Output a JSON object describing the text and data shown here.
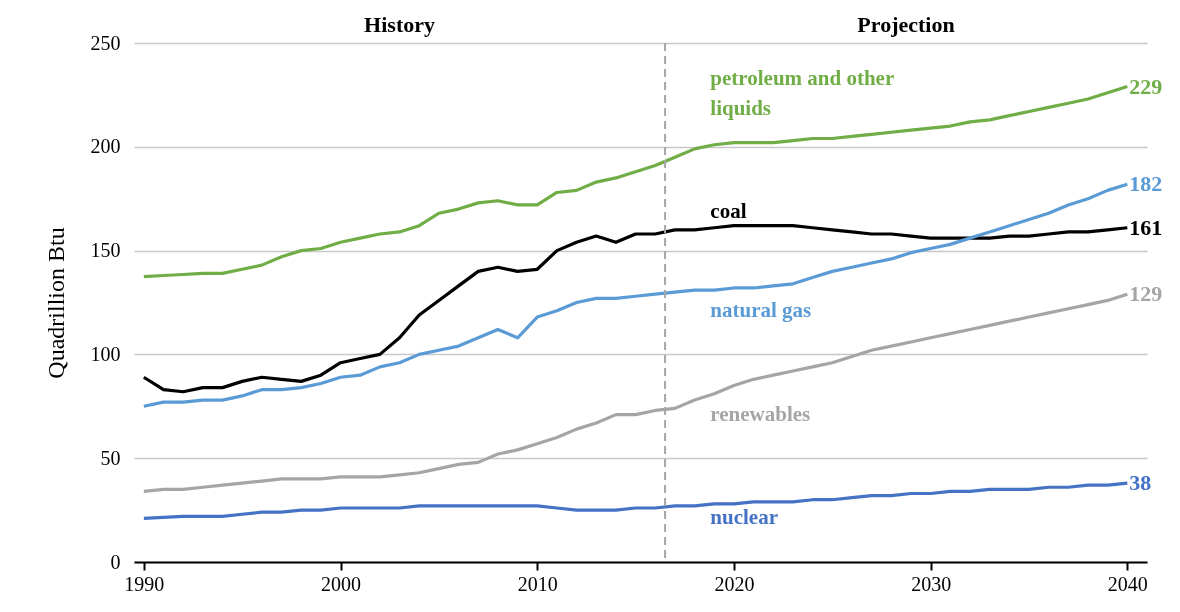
{
  "chart_data": {
    "type": "line",
    "ylabel": "Quadrillion Btu",
    "annotations": [
      "History",
      "Projection"
    ],
    "x": [
      1990,
      1991,
      1992,
      1993,
      1994,
      1995,
      1996,
      1997,
      1998,
      1999,
      2000,
      2001,
      2002,
      2003,
      2004,
      2005,
      2006,
      2007,
      2008,
      2009,
      2010,
      2011,
      2012,
      2013,
      2014,
      2015,
      2016,
      2017,
      2018,
      2019,
      2020,
      2021,
      2022,
      2023,
      2024,
      2025,
      2026,
      2027,
      2028,
      2029,
      2030,
      2031,
      2032,
      2033,
      2034,
      2035,
      2036,
      2037,
      2038,
      2039,
      2040
    ],
    "series": [
      {
        "name": "petroleum and other liquids",
        "color": "#70ad47",
        "values": [
          137.5,
          138,
          138.5,
          139,
          139,
          141,
          143,
          147,
          150,
          151,
          154,
          156,
          158,
          159,
          162,
          168,
          170,
          173,
          174,
          172,
          172,
          178,
          179,
          183,
          185,
          188,
          191,
          195,
          199,
          201,
          202,
          202,
          202,
          203,
          204,
          204,
          205,
          206,
          207,
          208,
          209,
          210,
          212,
          213,
          215,
          217,
          219,
          221,
          223,
          226,
          229
        ],
        "value_labels": [
          null,
          null,
          null,
          null,
          null,
          null,
          null,
          null,
          null,
          null,
          null,
          null,
          null,
          null,
          null,
          null,
          null,
          null,
          null,
          null,
          null,
          null,
          null,
          null,
          null,
          null,
          null,
          null,
          null,
          null,
          null,
          null,
          null,
          null,
          null,
          null,
          null,
          null,
          null,
          null,
          null,
          null,
          null,
          null,
          null,
          null,
          null,
          null,
          null,
          null,
          "229"
        ]
      },
      {
        "name": "coal",
        "color": "#000000",
        "values": [
          89,
          83,
          82,
          84,
          84,
          87,
          89,
          88,
          87,
          90,
          96,
          98,
          100,
          108,
          119,
          126,
          133,
          140,
          142,
          140,
          141,
          150,
          154,
          157,
          154,
          158,
          158,
          160,
          160,
          161,
          162,
          162,
          162,
          162,
          161,
          160,
          159,
          158,
          158,
          157,
          156,
          156,
          156,
          156,
          157,
          157,
          158,
          159,
          159,
          160,
          161
        ],
        "value_labels": [
          null,
          null,
          null,
          null,
          null,
          null,
          null,
          null,
          null,
          null,
          null,
          null,
          null,
          null,
          null,
          null,
          null,
          null,
          null,
          null,
          null,
          null,
          null,
          null,
          null,
          null,
          null,
          null,
          null,
          null,
          null,
          null,
          null,
          null,
          null,
          null,
          null,
          null,
          null,
          null,
          null,
          null,
          null,
          null,
          null,
          null,
          null,
          null,
          null,
          null,
          "161"
        ]
      },
      {
        "name": "natural gas",
        "color": "#5b9bd5",
        "values": [
          75,
          77,
          77,
          78,
          78,
          80,
          83,
          83,
          84,
          86,
          89,
          90,
          94,
          96,
          100,
          102,
          104,
          108,
          112,
          108,
          118,
          121,
          125,
          127,
          127,
          128,
          129,
          130,
          131,
          131,
          132,
          132,
          133,
          134,
          137,
          140,
          142,
          144,
          146,
          149,
          151,
          153,
          156,
          159,
          162,
          165,
          168,
          172,
          175,
          179,
          182
        ],
        "value_labels": [
          null,
          null,
          null,
          null,
          null,
          null,
          null,
          null,
          null,
          null,
          null,
          null,
          null,
          null,
          null,
          null,
          null,
          null,
          null,
          null,
          null,
          null,
          null,
          null,
          null,
          null,
          null,
          null,
          null,
          null,
          null,
          null,
          null,
          null,
          null,
          null,
          null,
          null,
          null,
          null,
          null,
          null,
          null,
          null,
          null,
          null,
          null,
          null,
          null,
          null,
          "182"
        ]
      },
      {
        "name": "renewables",
        "color": "#a5a5a5",
        "values": [
          34,
          35,
          35,
          36,
          37,
          38,
          39,
          40,
          40,
          40,
          41,
          41,
          41,
          42,
          43,
          45,
          47,
          48,
          52,
          54,
          57,
          60,
          64,
          67,
          71,
          71,
          73,
          74,
          78,
          81,
          85,
          88,
          90,
          92,
          94,
          96,
          99,
          102,
          104,
          106,
          108,
          110,
          112,
          114,
          116,
          118,
          120,
          122,
          124,
          126,
          129
        ],
        "value_labels": [
          null,
          null,
          null,
          null,
          null,
          null,
          null,
          null,
          null,
          null,
          null,
          null,
          null,
          null,
          null,
          null,
          null,
          null,
          null,
          null,
          null,
          null,
          null,
          null,
          null,
          null,
          null,
          null,
          null,
          null,
          null,
          null,
          null,
          null,
          null,
          null,
          null,
          null,
          null,
          null,
          null,
          null,
          null,
          null,
          null,
          null,
          null,
          null,
          null,
          null,
          "129"
        ]
      },
      {
        "name": "nuclear",
        "color": "#4472c4",
        "values": [
          21,
          21.5,
          22,
          22,
          22,
          23,
          24,
          24,
          25,
          25,
          26,
          26,
          26,
          26,
          27,
          27,
          27,
          27,
          27,
          27,
          27,
          26,
          25,
          25,
          25,
          26,
          26,
          27,
          27,
          28,
          28,
          29,
          29,
          29,
          30,
          30,
          31,
          32,
          32,
          33,
          33,
          34,
          34,
          35,
          35,
          35,
          36,
          36,
          37,
          37,
          38
        ],
        "value_labels": [
          null,
          null,
          null,
          null,
          null,
          null,
          null,
          null,
          null,
          null,
          null,
          null,
          null,
          null,
          null,
          null,
          null,
          null,
          null,
          null,
          null,
          null,
          null,
          null,
          null,
          null,
          null,
          null,
          null,
          null,
          null,
          null,
          null,
          null,
          null,
          null,
          null,
          null,
          null,
          null,
          null,
          null,
          null,
          null,
          null,
          null,
          null,
          null,
          null,
          null,
          "38"
        ]
      }
    ],
    "xlim": [
      1989.5,
      2041
    ],
    "xticks": [
      1990,
      2000,
      2010,
      2020,
      2030,
      2040
    ],
    "ylim": [
      0,
      250
    ],
    "yticks": [
      0,
      50,
      100,
      150,
      200,
      250
    ],
    "grid": "y",
    "legend": false,
    "marker": "none",
    "line_style": "solid",
    "ref_lines": [
      {
        "axis": "x",
        "value": 2016.5,
        "color": "#a5a5a5",
        "line_style": "dashed"
      }
    ]
  }
}
